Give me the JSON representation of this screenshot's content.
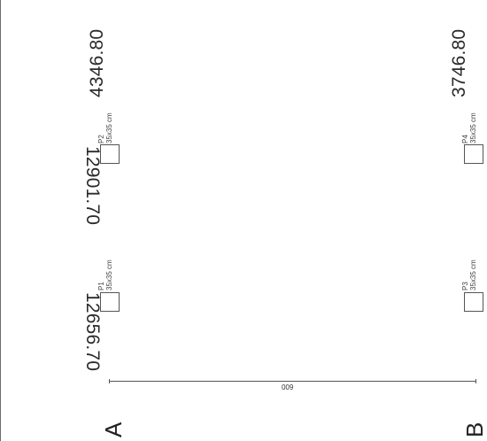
{
  "drawing": {
    "columns": [
      {
        "id": "P1",
        "size": "35x35 cm"
      },
      {
        "id": "P2",
        "size": "35x35 cm"
      },
      {
        "id": "P3",
        "size": "35x35 cm"
      },
      {
        "id": "P4",
        "size": "35x35 cm"
      }
    ],
    "coordinates": {
      "top_a": "4346.80",
      "top_b": "3746.80",
      "left_1": "12901.70",
      "left_2": "12656.70"
    },
    "dimension": {
      "value": "600"
    },
    "axes": {
      "a": "A",
      "b": "B"
    }
  }
}
